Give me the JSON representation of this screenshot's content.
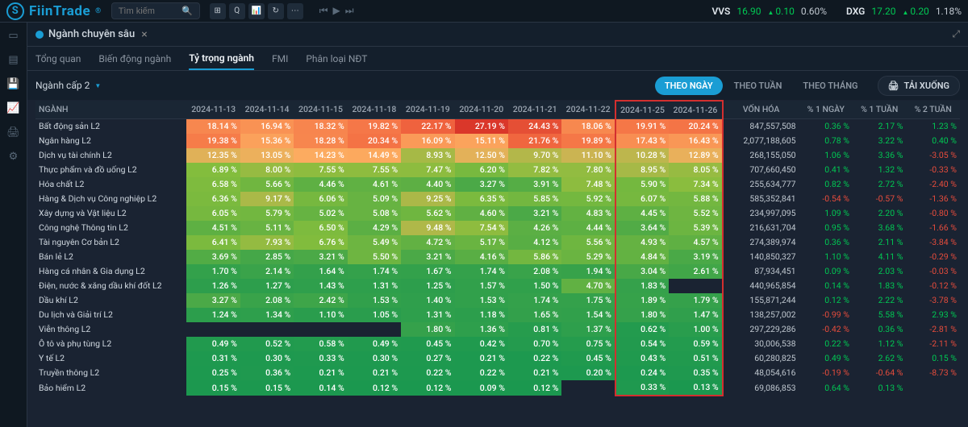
{
  "brand": "FiinTrade",
  "search_placeholder": "Tìm kiếm",
  "tickers": [
    {
      "sym": "VVS",
      "price": "16.90",
      "chg": "0.10",
      "pct": "0.60%"
    },
    {
      "sym": "DXG",
      "price": "17.20",
      "chg": "0.20",
      "pct": "1.18%"
    }
  ],
  "page_title": "Ngành chuyên sâu",
  "sub_tabs": [
    "Tổng quan",
    "Biến động ngành",
    "Tỷ trọng ngành",
    "FMI",
    "Phân loại NĐT"
  ],
  "active_sub_tab": 2,
  "dropdown_label": "Ngành cấp 2",
  "time_toggles": [
    "THEO NGÀY",
    "THEO TUẦN",
    "THEO THÁNG"
  ],
  "active_time": 0,
  "download_label": "TẢI XUỐNG",
  "col_name_header": "NGÀNH",
  "date_cols": [
    "2024-11-13",
    "2024-11-14",
    "2024-11-15",
    "2024-11-18",
    "2024-11-19",
    "2024-11-20",
    "2024-11-21",
    "2024-11-22",
    "2024-11-25",
    "2024-11-26"
  ],
  "highlight_date_idx": [
    8,
    9
  ],
  "extra_cols": [
    "VỐN HÓA",
    "% 1 NGÀY",
    "% 1 TUẦN",
    "% 2 TUẦN"
  ],
  "heat_scale": {
    "min_color": "#1a9850",
    "mid_color": "#fdae61",
    "max_color": "#d73027"
  },
  "rows": [
    {
      "name": "Bất động sản L2",
      "v": [
        18.14,
        16.94,
        18.32,
        19.82,
        22.17,
        27.19,
        24.43,
        18.06,
        19.91,
        20.24
      ],
      "vh": "847,557,508",
      "d1": 0.36,
      "w1": 2.17,
      "w2": 1.23
    },
    {
      "name": "Ngân hàng L2",
      "v": [
        19.38,
        15.36,
        18.28,
        20.34,
        16.09,
        15.11,
        21.76,
        19.89,
        17.43,
        16.43
      ],
      "vh": "2,077,188,605",
      "d1": 0.78,
      "w1": 3.22,
      "w2": 0.4
    },
    {
      "name": "Dịch vụ tài chính L2",
      "v": [
        12.35,
        13.05,
        14.23,
        14.49,
        8.93,
        12.5,
        9.7,
        11.1,
        10.28,
        12.89
      ],
      "vh": "268,155,050",
      "d1": 1.06,
      "w1": 3.36,
      "w2": -3.05
    },
    {
      "name": "Thực phẩm và đồ uống L2",
      "v": [
        6.89,
        8.0,
        7.55,
        7.55,
        7.47,
        6.2,
        7.82,
        7.8,
        8.95,
        8.05
      ],
      "vh": "707,660,450",
      "d1": 0.41,
      "w1": 1.32,
      "w2": -0.33
    },
    {
      "name": "Hóa chất L2",
      "v": [
        6.58,
        5.66,
        4.46,
        4.61,
        4.4,
        3.27,
        3.91,
        7.48,
        5.9,
        7.34
      ],
      "vh": "255,634,777",
      "d1": 0.82,
      "w1": 2.72,
      "w2": -2.4
    },
    {
      "name": "Hàng & Dịch vụ Công nghiệp L2",
      "v": [
        6.36,
        9.17,
        6.06,
        5.09,
        9.25,
        6.35,
        5.85,
        5.92,
        6.07,
        5.88
      ],
      "vh": "585,352,841",
      "d1": -0.54,
      "w1": -0.57,
      "w2": -1.36
    },
    {
      "name": "Xây dựng và Vật liệu L2",
      "v": [
        6.05,
        5.79,
        5.02,
        5.08,
        5.62,
        4.6,
        3.21,
        4.83,
        4.45,
        5.52
      ],
      "vh": "234,997,095",
      "d1": 1.09,
      "w1": 2.2,
      "w2": -0.8
    },
    {
      "name": "Công nghệ Thông tin L2",
      "v": [
        4.51,
        5.11,
        6.5,
        4.29,
        9.48,
        7.54,
        4.26,
        4.44,
        3.64,
        5.39
      ],
      "vh": "216,631,704",
      "d1": 0.95,
      "w1": 3.68,
      "w2": -1.66
    },
    {
      "name": "Tài nguyên Cơ bản L2",
      "v": [
        6.41,
        7.93,
        6.76,
        5.49,
        4.72,
        5.17,
        4.12,
        5.56,
        4.93,
        4.57
      ],
      "vh": "274,389,974",
      "d1": 0.36,
      "w1": 2.11,
      "w2": -3.84
    },
    {
      "name": "Bán lẻ L2",
      "v": [
        3.69,
        2.85,
        3.21,
        5.5,
        3.21,
        4.16,
        5.86,
        5.29,
        4.84,
        3.19
      ],
      "vh": "140,850,327",
      "d1": 1.1,
      "w1": 4.11,
      "w2": -0.29
    },
    {
      "name": "Hàng cá nhân & Gia dụng L2",
      "v": [
        1.7,
        2.14,
        1.64,
        1.74,
        1.67,
        1.74,
        2.08,
        1.94,
        3.04,
        2.61
      ],
      "vh": "87,934,451",
      "d1": 0.09,
      "w1": 2.03,
      "w2": -0.03
    },
    {
      "name": "Điện, nước & xăng dầu khí đốt L2",
      "v": [
        1.26,
        1.27,
        1.43,
        1.31,
        1.25,
        1.57,
        1.5,
        4.7,
        1.83,
        null
      ],
      "vh": "440,965,854",
      "d1": 0.14,
      "w1": 1.83,
      "w2": -0.12
    },
    {
      "name": "Dầu khí L2",
      "v": [
        3.27,
        2.08,
        2.42,
        1.53,
        1.4,
        1.53,
        1.74,
        1.75,
        1.89,
        1.79
      ],
      "vh": "155,871,244",
      "d1": 0.12,
      "w1": 2.22,
      "w2": -3.78
    },
    {
      "name": "Du lịch và Giải trí L2",
      "v": [
        1.24,
        1.34,
        1.1,
        1.05,
        1.31,
        1.18,
        1.65,
        1.54,
        1.8,
        1.47
      ],
      "vh": "138,257,002",
      "d1": -0.99,
      "w1": 5.58,
      "w2": 2.93
    },
    {
      "name": "Viễn thông L2",
      "v": [
        null,
        null,
        null,
        null,
        1.8,
        1.36,
        0.81,
        1.37,
        0.62,
        1.0
      ],
      "vh": "297,229,286",
      "d1": -0.42,
      "w1": 0.36,
      "w2": -2.81
    },
    {
      "name": "Ô tô và phụ tùng L2",
      "v": [
        0.49,
        0.52,
        0.58,
        0.49,
        0.45,
        0.42,
        0.7,
        0.75,
        0.54,
        0.59
      ],
      "vh": "30,006,538",
      "d1": 0.22,
      "w1": 1.12,
      "w2": -2.11
    },
    {
      "name": "Y tế L2",
      "v": [
        0.31,
        0.3,
        0.33,
        0.3,
        0.27,
        0.21,
        0.22,
        0.45,
        0.43,
        0.51
      ],
      "vh": "60,280,825",
      "d1": 0.49,
      "w1": 2.62,
      "w2": 0.15
    },
    {
      "name": "Truyền thông L2",
      "v": [
        0.25,
        0.36,
        0.21,
        0.21,
        0.22,
        0.22,
        0.21,
        0.2,
        0.24,
        0.35
      ],
      "vh": "48,054,616",
      "d1": -0.19,
      "w1": -0.64,
      "w2": -8.73
    },
    {
      "name": "Bảo hiểm L2",
      "v": [
        0.15,
        0.15,
        0.14,
        0.12,
        0.12,
        0.09,
        0.12,
        null,
        0.33,
        0.13
      ],
      "vh": "69,086,853",
      "d1": 0.64,
      "w1": 0.13,
      "w2": null
    }
  ]
}
